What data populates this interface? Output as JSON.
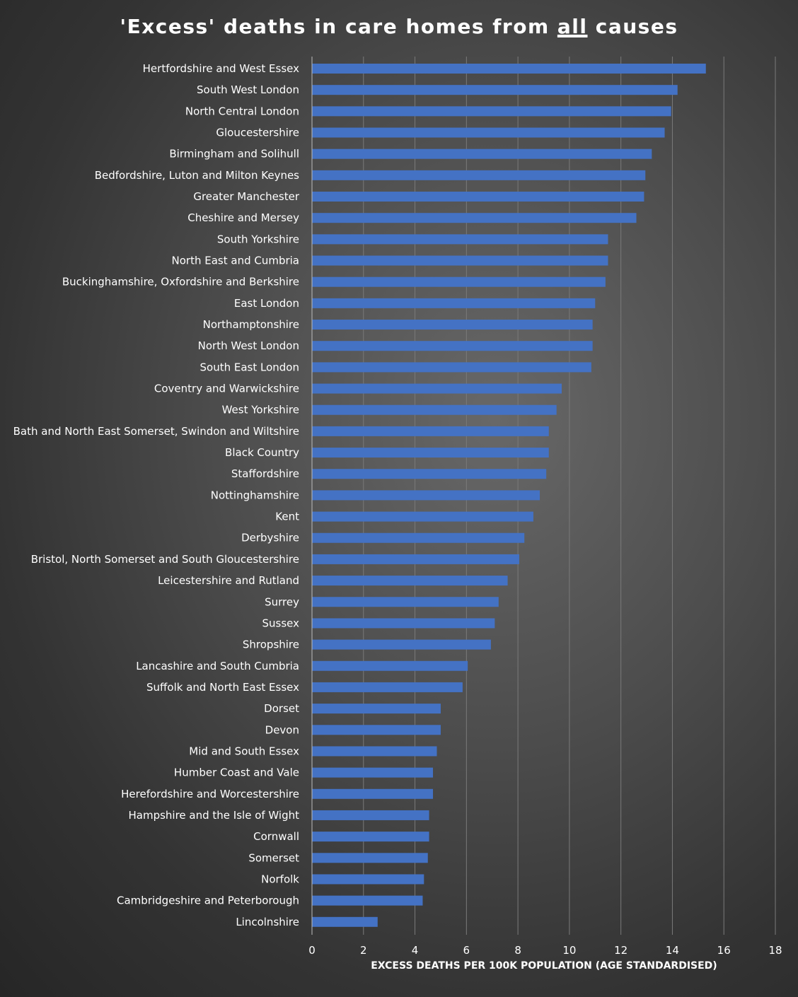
{
  "chart_data": {
    "type": "bar",
    "orientation": "horizontal",
    "title": {
      "before": "'Excess' deaths in care homes from ",
      "emphasis": "all",
      "after": " causes"
    },
    "xlabel": "EXCESS DEATHS PER 100K POPULATION (AGE STANDARDISED)",
    "ylabel": "",
    "xlim": [
      0,
      18
    ],
    "xticks": [
      0,
      2,
      4,
      6,
      8,
      10,
      12,
      14,
      16,
      18
    ],
    "grid": true,
    "bar_color": "#4472c4",
    "categories": [
      "Hertfordshire and West Essex",
      "South West London",
      "North Central London",
      "Gloucestershire",
      "Birmingham and Solihull",
      "Bedfordshire, Luton and Milton Keynes",
      "Greater Manchester",
      "Cheshire and Mersey",
      "South Yorkshire",
      "North East and Cumbria",
      "Buckinghamshire, Oxfordshire and Berkshire",
      "East London",
      "Northamptonshire",
      "North West London",
      "South East London",
      "Coventry and Warwickshire",
      "West Yorkshire",
      "Bath and North East Somerset, Swindon and Wiltshire",
      "Black Country",
      "Staffordshire",
      "Nottinghamshire",
      "Kent",
      "Derbyshire",
      "Bristol, North Somerset and South Gloucestershire",
      "Leicestershire and Rutland",
      "Surrey",
      "Sussex",
      "Shropshire",
      "Lancashire and South Cumbria",
      "Suffolk and North East Essex",
      "Dorset",
      "Devon",
      "Mid and South Essex",
      "Humber Coast and Vale",
      "Herefordshire and Worcestershire",
      "Hampshire and the Isle of Wight",
      "Cornwall",
      "Somerset",
      "Norfolk",
      "Cambridgeshire and Peterborough",
      "Lincolnshire"
    ],
    "values": [
      15.3,
      14.2,
      13.95,
      13.7,
      13.2,
      12.95,
      12.9,
      12.6,
      11.5,
      11.5,
      11.4,
      11.0,
      10.9,
      10.9,
      10.85,
      9.7,
      9.5,
      9.2,
      9.2,
      9.1,
      8.85,
      8.6,
      8.25,
      8.05,
      7.6,
      7.25,
      7.1,
      6.95,
      6.05,
      5.85,
      5.0,
      5.0,
      4.85,
      4.7,
      4.7,
      4.55,
      4.55,
      4.5,
      4.35,
      4.3,
      2.55
    ]
  }
}
